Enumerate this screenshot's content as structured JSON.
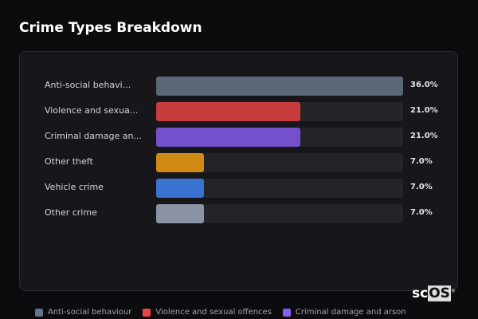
{
  "chart_data": {
    "type": "bar",
    "orientation": "horizontal",
    "title": "Crime Types Breakdown",
    "categories": [
      "Anti-social behavi...",
      "Violence and sexua...",
      "Criminal damage an...",
      "Other theft",
      "Vehicle crime",
      "Other crime"
    ],
    "values": [
      36.0,
      21.0,
      21.0,
      7.0,
      7.0,
      7.0
    ],
    "value_labels": [
      "36.0%",
      "21.0%",
      "21.0%",
      "7.0%",
      "7.0%",
      "7.0%"
    ],
    "colors": [
      "#5b6677",
      "#c83c3e",
      "#7550cc",
      "#d08a14",
      "#3a72d0",
      "#8a93a3"
    ],
    "xlim": [
      0,
      36
    ],
    "legend": [
      {
        "label": "Anti-social behaviour",
        "color": "#64748b"
      },
      {
        "label": "Violence and sexual offences",
        "color": "#ef4444"
      },
      {
        "label": "Criminal damage and arson",
        "color": "#8b5cf6"
      }
    ],
    "legend_position": "bottom"
  },
  "logo": {
    "text_a": "sc",
    "text_b": "OS",
    "mark": "®"
  }
}
